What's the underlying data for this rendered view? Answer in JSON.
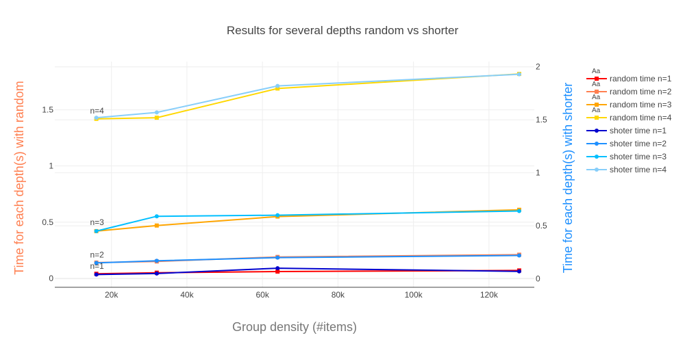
{
  "chart_data": {
    "type": "line",
    "title": "Results for several depths random vs shorter",
    "xlabel": "Group density (#items)",
    "ylabel": "Time for each depth(s) with random",
    "ylabel_right": "Time for each depth(s) with shorter",
    "x_ticks": [
      {
        "value": 20000,
        "label": "20k"
      },
      {
        "value": 40000,
        "label": "40k"
      },
      {
        "value": 60000,
        "label": "60k"
      },
      {
        "value": 80000,
        "label": "80k"
      },
      {
        "value": 100000,
        "label": "100k"
      },
      {
        "value": 120000,
        "label": "120k"
      }
    ],
    "y_ticks": [
      {
        "value": 0,
        "label": "0"
      },
      {
        "value": 0.5,
        "label": "0.5"
      },
      {
        "value": 1,
        "label": "1"
      },
      {
        "value": 1.5,
        "label": "1.5"
      }
    ],
    "y2_ticks": [
      {
        "value": 0,
        "label": "0"
      },
      {
        "value": 0.5,
        "label": "0.5"
      },
      {
        "value": 1,
        "label": "1"
      },
      {
        "value": 1.5,
        "label": "1.5"
      },
      {
        "value": 2,
        "label": "2"
      }
    ],
    "xlim": [
      5000,
      132000
    ],
    "ylim": [
      -0.08,
      1.93
    ],
    "y2lim": [
      -0.08,
      2.05
    ],
    "x": [
      16000,
      32000,
      64000,
      128000
    ],
    "series": [
      {
        "name": "random time n=1",
        "axis": "left",
        "color": "#ff0000",
        "marker": "square",
        "values": [
          0.04,
          0.05,
          0.06,
          0.07
        ]
      },
      {
        "name": "random time n=2",
        "axis": "left",
        "color": "#ff7f50",
        "marker": "square",
        "values": [
          0.14,
          0.15,
          0.19,
          0.21
        ]
      },
      {
        "name": "random time n=3",
        "axis": "left",
        "color": "#ffa500",
        "marker": "square",
        "values": [
          0.42,
          0.47,
          0.55,
          0.61
        ]
      },
      {
        "name": "random time n=4",
        "axis": "left",
        "color": "#ffd700",
        "marker": "square",
        "values": [
          1.42,
          1.43,
          1.69,
          1.82
        ]
      },
      {
        "name": "shoter time n=1",
        "axis": "right",
        "color": "#0000cd",
        "marker": "circle",
        "values": [
          0.04,
          0.05,
          0.1,
          0.07
        ]
      },
      {
        "name": "shoter time n=2",
        "axis": "right",
        "color": "#1e90ff",
        "marker": "circle",
        "values": [
          0.15,
          0.17,
          0.2,
          0.22
        ]
      },
      {
        "name": "shoter time n=3",
        "axis": "right",
        "color": "#00bfff",
        "marker": "circle",
        "values": [
          0.45,
          0.59,
          0.6,
          0.64
        ]
      },
      {
        "name": "shoter time n=4",
        "axis": "right",
        "color": "#87cefa",
        "marker": "circle",
        "values": [
          1.52,
          1.57,
          1.82,
          1.93
        ]
      }
    ],
    "annotations": [
      {
        "text": "n=4",
        "x": 16000,
        "y": 1.49
      },
      {
        "text": "n=3",
        "x": 16000,
        "y": 0.5
      },
      {
        "text": "n=2",
        "x": 16000,
        "y": 0.21
      },
      {
        "text": "n=1",
        "x": 16000,
        "y": 0.11
      }
    ],
    "legend_marker_label": "Aa",
    "grid": true,
    "legend_position": "right",
    "colors": {
      "left_title": "#ff7f50",
      "right_title": "#1e90ff",
      "grid": "#eeeeee",
      "axis": "#444444"
    }
  }
}
